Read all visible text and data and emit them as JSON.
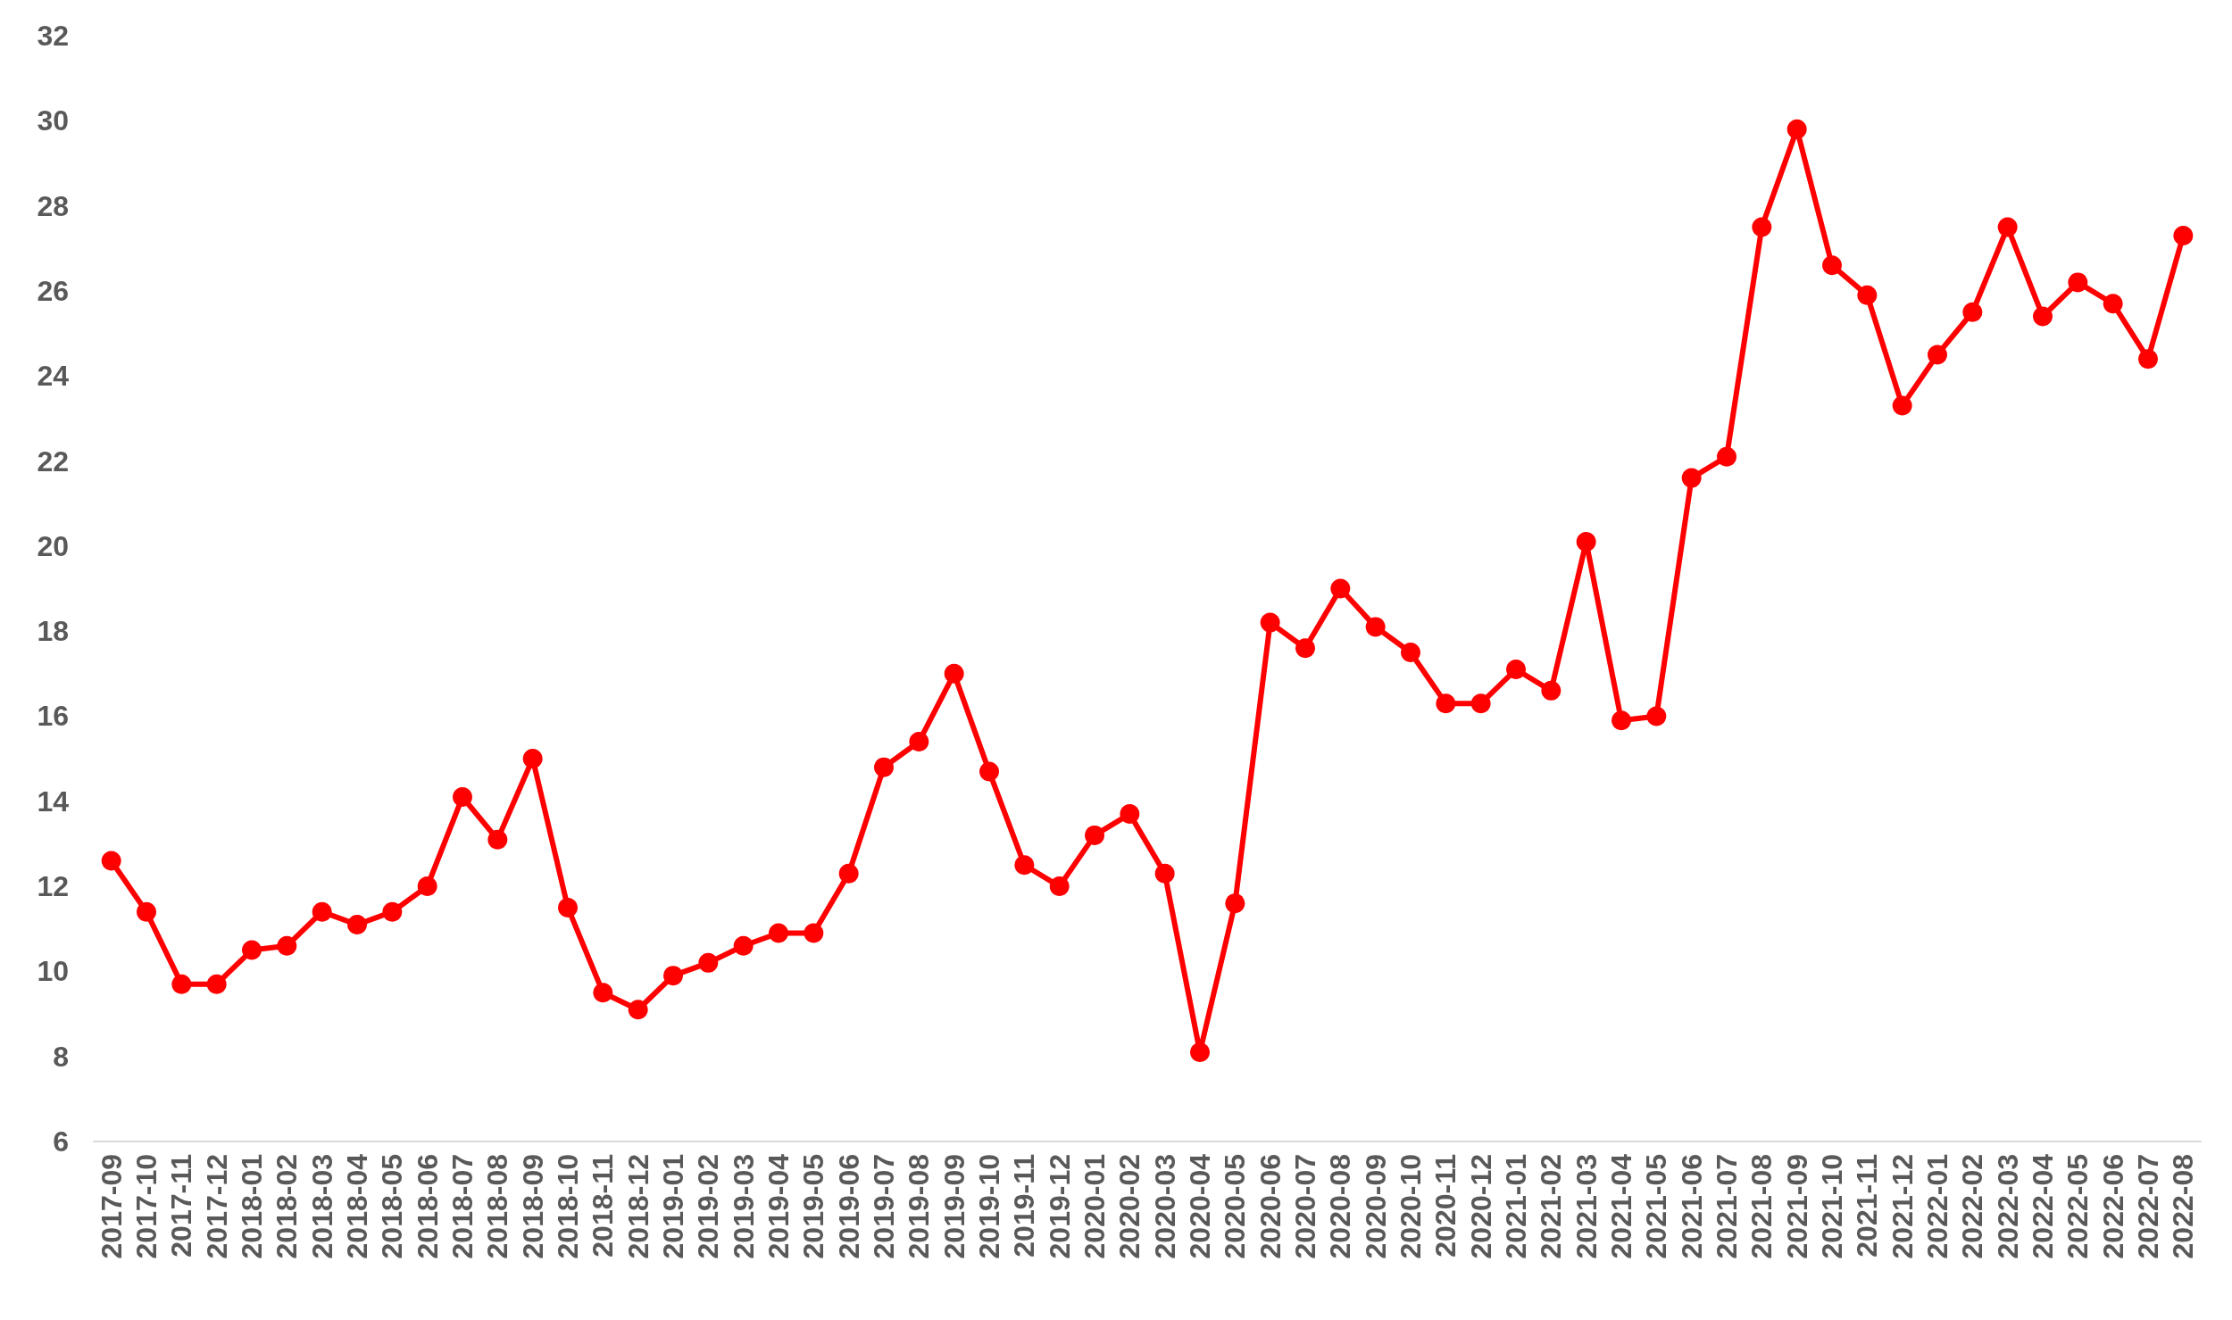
{
  "chart_data": {
    "type": "line",
    "categories": [
      "2017-09",
      "2017-10",
      "2017-11",
      "2017-12",
      "2018-01",
      "2018-02",
      "2018-03",
      "2018-04",
      "2018-05",
      "2018-06",
      "2018-07",
      "2018-08",
      "2018-09",
      "2018-10",
      "2018-11",
      "2018-12",
      "2019-01",
      "2019-02",
      "2019-03",
      "2019-04",
      "2019-05",
      "2019-06",
      "2019-07",
      "2019-08",
      "2019-09",
      "2019-10",
      "2019-11",
      "2019-12",
      "2020-01",
      "2020-02",
      "2020-03",
      "2020-04",
      "2020-05",
      "2020-06",
      "2020-07",
      "2020-08",
      "2020-09",
      "2020-10",
      "2020-11",
      "2020-12",
      "2021-01",
      "2021-02",
      "2021-03",
      "2021-04",
      "2021-05",
      "2021-06",
      "2021-07",
      "2021-08",
      "2021-09",
      "2021-10",
      "2021-11",
      "2021-12",
      "2022-01",
      "2022-02",
      "2022-03",
      "2022-04",
      "2022-05",
      "2022-06",
      "2022-07",
      "2022-08"
    ],
    "series": [
      {
        "color": "#ff0000",
        "values": [
          12.6,
          11.4,
          9.7,
          9.7,
          10.5,
          10.6,
          11.4,
          11.1,
          11.4,
          12.0,
          14.1,
          13.1,
          15.0,
          11.5,
          9.5,
          9.1,
          9.9,
          10.2,
          10.6,
          10.9,
          10.9,
          12.3,
          14.8,
          15.4,
          17.0,
          14.7,
          12.5,
          12.0,
          13.2,
          13.7,
          12.3,
          8.1,
          11.6,
          18.2,
          17.6,
          19.0,
          18.1,
          17.5,
          16.3,
          16.3,
          17.1,
          16.6,
          20.1,
          15.9,
          16.0,
          21.6,
          22.1,
          27.5,
          29.8,
          26.6,
          25.9,
          23.3,
          24.5,
          25.5,
          27.5,
          25.4,
          26.2,
          25.7,
          24.4,
          27.3
        ]
      }
    ],
    "ylim": [
      6,
      32
    ],
    "yticks": [
      6,
      8,
      10,
      12,
      14,
      16,
      18,
      20,
      22,
      24,
      26,
      28,
      30,
      32
    ],
    "grid": false,
    "marker": "circle",
    "line_style": "solid"
  }
}
